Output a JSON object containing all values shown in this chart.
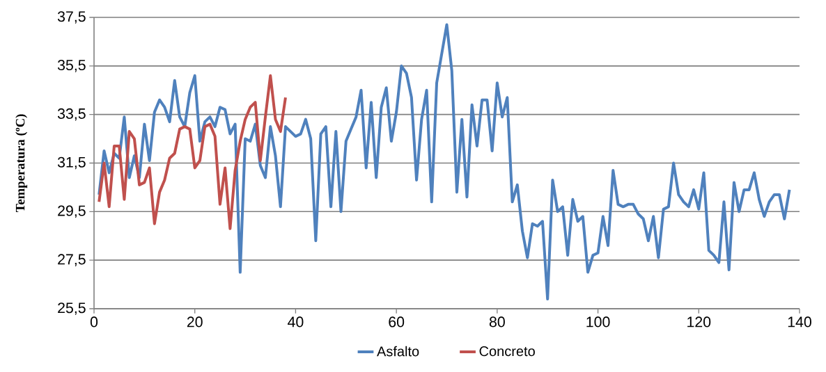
{
  "chart_data": {
    "type": "line",
    "ylabel": "Temperatura (ºC)",
    "xlim": [
      0,
      140
    ],
    "xticks": [
      0,
      20,
      40,
      60,
      80,
      100,
      120,
      140
    ],
    "ylim": [
      25.5,
      37.5
    ],
    "yticks": [
      {
        "value": 25.5,
        "label": "25,5"
      },
      {
        "value": 27.5,
        "label": "27,5"
      },
      {
        "value": 29.5,
        "label": "29,5"
      },
      {
        "value": 31.5,
        "label": "31,5"
      },
      {
        "value": 33.5,
        "label": "33,5"
      },
      {
        "value": 35.5,
        "label": "35,5"
      },
      {
        "value": 37.5,
        "label": "37,5"
      }
    ],
    "grid": "y",
    "legend": "bottom",
    "series": [
      {
        "name": "Asfalto",
        "color": "#4f81bd",
        "x": [
          1,
          2,
          3,
          4,
          5,
          6,
          7,
          8,
          9,
          10,
          11,
          12,
          13,
          14,
          15,
          16,
          17,
          18,
          19,
          20,
          21,
          22,
          23,
          24,
          25,
          26,
          27,
          28,
          29,
          30,
          31,
          32,
          33,
          34,
          35,
          36,
          37,
          38,
          39,
          40,
          41,
          42,
          43,
          44,
          45,
          46,
          47,
          48,
          49,
          50,
          51,
          52,
          53,
          54,
          55,
          56,
          57,
          58,
          59,
          60,
          61,
          62,
          63,
          64,
          65,
          66,
          67,
          68,
          69,
          70,
          71,
          72,
          73,
          74,
          75,
          76,
          77,
          78,
          79,
          80,
          81,
          82,
          83,
          84,
          85,
          86,
          87,
          88,
          89,
          90,
          91,
          92,
          93,
          94,
          95,
          96,
          97,
          98,
          99,
          100,
          101,
          102,
          103,
          104,
          105,
          106,
          107,
          108,
          109,
          110,
          111,
          112,
          113,
          114,
          115,
          116,
          117,
          118,
          119,
          120,
          121,
          122,
          123,
          124,
          125,
          126,
          127,
          128,
          129,
          130,
          131,
          132,
          133,
          134,
          135,
          136,
          137,
          138
        ],
        "values": [
          30.2,
          32.0,
          31.1,
          31.9,
          31.7,
          33.4,
          30.9,
          31.8,
          30.9,
          33.1,
          31.6,
          33.6,
          34.1,
          33.8,
          33.2,
          34.9,
          33.4,
          33.0,
          34.4,
          35.1,
          32.4,
          33.2,
          33.4,
          33.0,
          33.8,
          33.7,
          32.7,
          33.1,
          27.0,
          32.5,
          32.4,
          33.1,
          31.4,
          30.9,
          33.0,
          31.8,
          29.7,
          33.0,
          32.8,
          32.6,
          32.7,
          33.3,
          32.5,
          28.3,
          32.7,
          33.0,
          29.7,
          32.8,
          29.5,
          32.4,
          32.9,
          33.4,
          34.5,
          31.3,
          34.0,
          30.9,
          33.8,
          34.6,
          32.4,
          33.6,
          35.5,
          35.2,
          34.2,
          30.8,
          33.3,
          34.5,
          29.9,
          34.8,
          36.0,
          37.2,
          35.3,
          30.3,
          33.3,
          30.1,
          33.9,
          32.2,
          34.1,
          34.1,
          32.0,
          34.8,
          33.4,
          34.2,
          29.9,
          30.6,
          28.7,
          27.6,
          29.0,
          28.9,
          29.1,
          25.9,
          30.8,
          29.5,
          29.7,
          27.7,
          30.0,
          29.1,
          29.3,
          27.0,
          27.7,
          27.8,
          29.3,
          28.1,
          31.2,
          29.8,
          29.7,
          29.8,
          29.8,
          29.4,
          29.2,
          28.3,
          29.3,
          27.6,
          29.6,
          29.7,
          31.5,
          30.2,
          29.9,
          29.7,
          30.4,
          29.6,
          31.1,
          27.9,
          27.7,
          27.4,
          29.9,
          27.1,
          30.7,
          29.5,
          30.4,
          30.4,
          31.1,
          30.0,
          29.3,
          29.9,
          30.2,
          30.2,
          29.2,
          30.4
        ]
      },
      {
        "name": "Concreto",
        "color": "#c0504d",
        "x": [
          1,
          2,
          3,
          4,
          5,
          6,
          7,
          8,
          9,
          10,
          11,
          12,
          13,
          14,
          15,
          16,
          17,
          18,
          19,
          20,
          21,
          22,
          23,
          24,
          25,
          26,
          27,
          28,
          29,
          30,
          31,
          32,
          33,
          34,
          35,
          36,
          37,
          38
        ],
        "values": [
          29.9,
          31.5,
          29.7,
          32.2,
          32.2,
          30.0,
          32.8,
          32.5,
          30.6,
          30.7,
          31.3,
          29.0,
          30.3,
          30.8,
          31.7,
          31.9,
          32.9,
          33.0,
          32.9,
          31.3,
          31.6,
          33.0,
          33.1,
          32.6,
          29.8,
          31.3,
          28.8,
          31.2,
          32.4,
          33.3,
          33.8,
          34.0,
          31.6,
          33.4,
          35.1,
          33.3,
          32.8,
          34.2
        ]
      }
    ]
  }
}
